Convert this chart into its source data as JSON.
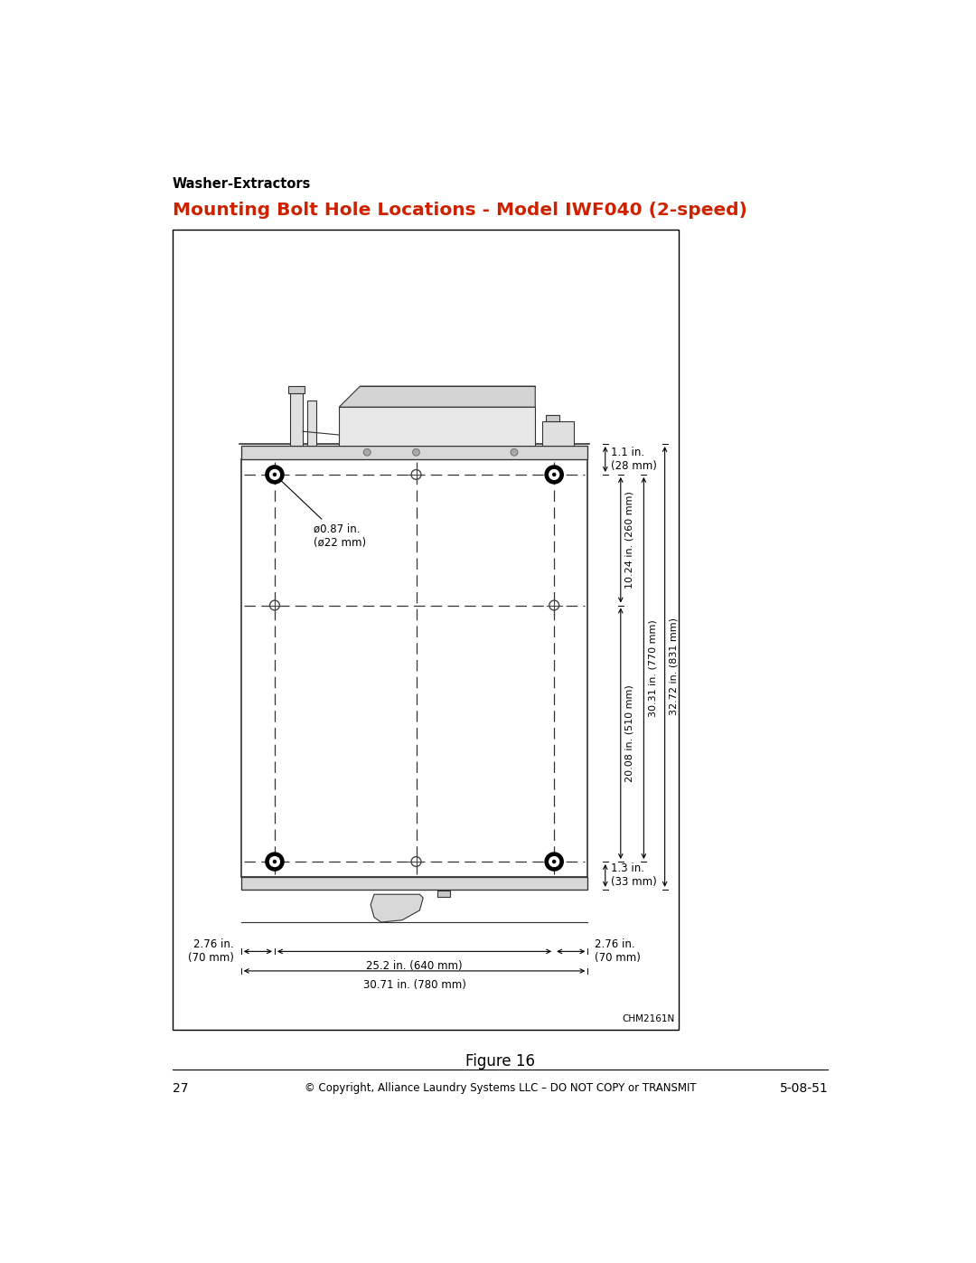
{
  "page_title": "Washer-Extractors",
  "section_title": "Mounting Bolt Hole Locations - Model IWF040 (2-speed)",
  "section_title_color": "#cc2200",
  "figure_label": "Figure 16",
  "figure_ref": "CHM2161N",
  "footer_text": "© Copyright, Alliance Laundry Systems LLC – DO NOT COPY or TRANSMIT",
  "footer_page": "27",
  "footer_right": "5-08-51",
  "dim_1_1": "1.1 in.\n(28 mm)",
  "dim_1_3": "1.3 in.\n(33 mm)",
  "dim_10_24": "10.24 in. (260 mm)",
  "dim_20_08": "20.08 in. (510 mm)",
  "dim_30_31": "30.31 in. (770 mm)",
  "dim_32_72": "32.72 in. (831 mm)",
  "dim_2_76_left": "2.76 in.\n(70 mm)",
  "dim_2_76_right": "2.76 in.\n(70 mm)",
  "dim_25_2": "25.2 in. (640 mm)",
  "dim_30_71": "30.71 in. (780 mm)",
  "dim_hole": "ø0.87 in.\n(ø22 mm)",
  "body_lw": 1.2,
  "dash_color": "#333333",
  "line_color": "#333333"
}
